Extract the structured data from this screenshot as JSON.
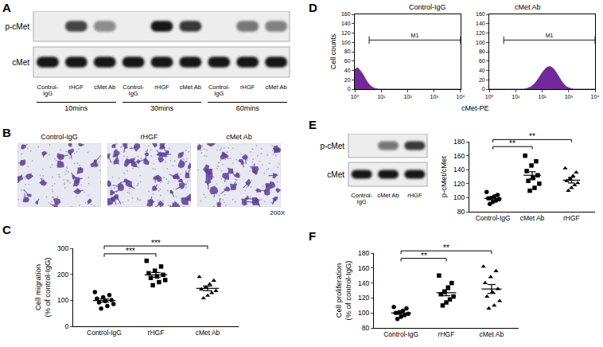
{
  "blot_A": {
    "panel": "A",
    "rows": [
      {
        "label": "p-cMet",
        "intensities": [
          0,
          0.8,
          0.45,
          0,
          1,
          0.85,
          0,
          0.55,
          0.5
        ]
      },
      {
        "label": "cMet",
        "intensities": [
          1,
          1,
          1,
          1,
          1,
          1,
          1,
          1,
          1
        ]
      }
    ],
    "lanes": [
      "Control-IgG",
      "rHGF",
      "cMet Ab",
      "Control-IgG",
      "rHGF",
      "cMet Ab",
      "Control-IgG",
      "rHGF",
      "cMet Ab"
    ],
    "groups": [
      "10mins",
      "30mins",
      "60mins"
    ]
  },
  "micrographs": {
    "panel": "B",
    "titles": [
      "Control-IgG",
      "rHGF",
      "cMet Ab"
    ],
    "magnification": "200X"
  },
  "chart_data": [
    {
      "panel": "C",
      "type": "scatter",
      "categories": [
        "Control-IgG",
        "rHGF",
        "cMet Ab"
      ],
      "groups": [
        {
          "category": "Control-IgG",
          "marker": "circle",
          "values": [
            132,
            120,
            112,
            106,
            101,
            97,
            92,
            86,
            78,
            68
          ],
          "mean": 99,
          "sem": 6
        },
        {
          "category": "rHGF",
          "marker": "square",
          "values": [
            252,
            230,
            214,
            204,
            198,
            192,
            186,
            178,
            170,
            158
          ],
          "mean": 198,
          "sem": 9
        },
        {
          "category": "cMet Ab",
          "marker": "triangle",
          "values": [
            190,
            176,
            162,
            150,
            142,
            136,
            128,
            118,
            108
          ],
          "mean": 146,
          "sem": 9
        }
      ],
      "y_label": [
        "Cell migration",
        "(% of control-IgG)"
      ],
      "ylim": [
        0,
        300
      ],
      "yticks": [
        0,
        100,
        200,
        300
      ],
      "significance": [
        {
          "from": 0,
          "to": 1,
          "label": "***"
        },
        {
          "from": 0,
          "to": 2,
          "label": "***"
        }
      ],
      "grid": false,
      "color": "#000000"
    },
    {
      "panel": "D",
      "type": "area",
      "x": [
        1,
        1.26,
        1.58,
        2,
        2.51,
        3.16,
        3.98,
        5.01,
        6.31,
        7.94,
        10,
        12.6,
        15.8,
        20,
        25.1,
        31.6,
        39.8,
        50.1,
        63.1,
        79.4,
        100,
        126,
        158,
        200,
        251,
        316,
        398,
        501,
        631,
        794,
        1000,
        1259,
        1585,
        1995,
        2512,
        3162,
        3981,
        5012,
        6310,
        7943,
        10000
      ],
      "subplots": [
        {
          "title": "Control-IgG",
          "values": [
            42,
            45,
            40,
            32,
            22,
            13,
            7,
            3,
            1,
            0,
            0,
            0,
            0,
            0,
            0,
            0,
            0,
            0,
            0,
            0,
            0,
            0,
            0,
            0,
            0,
            0,
            0,
            0,
            0,
            0,
            0,
            0,
            0,
            0,
            0,
            0,
            0,
            0,
            0,
            0,
            0
          ]
        },
        {
          "title": "cMet Ab",
          "values": [
            0,
            0,
            0,
            0,
            0,
            0,
            0,
            0,
            0,
            0,
            0,
            0,
            0,
            0,
            1,
            3,
            6,
            11,
            18,
            26,
            35,
            42,
            47,
            48,
            45,
            38,
            29,
            20,
            12,
            6,
            3,
            1,
            0,
            0,
            0,
            0,
            0,
            0,
            0,
            0,
            0
          ]
        }
      ],
      "log": "x",
      "xlim": [
        1,
        10000
      ],
      "xticks": [
        {
          "value": 1,
          "label": "10⁰"
        },
        {
          "value": 10,
          "label": "10¹"
        },
        {
          "value": 100,
          "label": "10²"
        },
        {
          "value": 1000,
          "label": "10³"
        },
        {
          "value": 10000,
          "label": "10⁴"
        }
      ],
      "ylim": [
        0,
        160
      ],
      "yticks": [
        0,
        20,
        40,
        60,
        80,
        100,
        120,
        140,
        160
      ],
      "x_label": "cMet-PE",
      "y_label": "Cell counts",
      "gate": {
        "label": "M1",
        "x": [
          3.5,
          10000
        ],
        "y": 105
      },
      "grid": false,
      "color": "#72279c"
    },
    {
      "panel": "E",
      "type": "scatter",
      "blot": {
        "rows": [
          {
            "label": "p-cMet",
            "intensities": [
              0,
              0.55,
              0.85
            ]
          },
          {
            "label": "cMet",
            "intensities": [
              1,
              1,
              1
            ]
          }
        ],
        "lanes": [
          "Control-IgG",
          "cMet Ab",
          "rHGF"
        ]
      },
      "categories": [
        "Control-IgG",
        "cMet Ab",
        "rHGF"
      ],
      "groups": [
        {
          "category": "Control-IgG",
          "marker": "circle",
          "values": [
            108,
            104,
            102,
            100,
            99,
            98,
            96,
            94,
            91
          ],
          "mean": 99,
          "sem": 2
        },
        {
          "category": "cMet Ab",
          "marker": "square",
          "values": [
            160,
            152,
            146,
            138,
            132,
            128,
            124,
            120,
            114,
            110
          ],
          "mean": 132,
          "sem": 5
        },
        {
          "category": "rHGF",
          "marker": "triangle",
          "values": [
            142,
            136,
            131,
            127,
            124,
            121,
            118,
            114,
            110
          ],
          "mean": 125,
          "sem": 4
        }
      ],
      "y_label": [
        "p-cMet/cMet"
      ],
      "ylim": [
        80,
        180
      ],
      "yticks": [
        80,
        100,
        120,
        140,
        160,
        180
      ],
      "significance": [
        {
          "from": 0,
          "to": 1,
          "label": "**"
        },
        {
          "from": 0,
          "to": 2,
          "label": "**"
        }
      ],
      "grid": false,
      "color": "#000000"
    },
    {
      "panel": "F",
      "type": "scatter",
      "categories": [
        "Control-IgG",
        "rHGF",
        "cMet Ab"
      ],
      "groups": [
        {
          "category": "Control-IgG",
          "marker": "circle",
          "values": [
            108,
            106,
            103,
            101,
            100,
            99,
            97,
            95,
            92
          ],
          "mean": 100,
          "sem": 2
        },
        {
          "category": "rHGF",
          "marker": "square",
          "values": [
            150,
            140,
            134,
            128,
            125,
            122,
            118,
            114,
            110
          ],
          "mean": 127,
          "sem": 4
        },
        {
          "category": "cMet Ab",
          "marker": "triangle",
          "values": [
            162,
            156,
            148,
            140,
            132,
            128,
            122,
            116,
            110,
            106
          ],
          "mean": 132,
          "sem": 6
        }
      ],
      "y_label": [
        "Cell proliferation",
        "(% of control-IgG)"
      ],
      "ylim": [
        80,
        180
      ],
      "yticks": [
        80,
        100,
        120,
        140,
        160,
        180
      ],
      "significance": [
        {
          "from": 0,
          "to": 1,
          "label": "**"
        },
        {
          "from": 0,
          "to": 2,
          "label": "**"
        }
      ],
      "grid": false,
      "color": "#000000"
    }
  ]
}
